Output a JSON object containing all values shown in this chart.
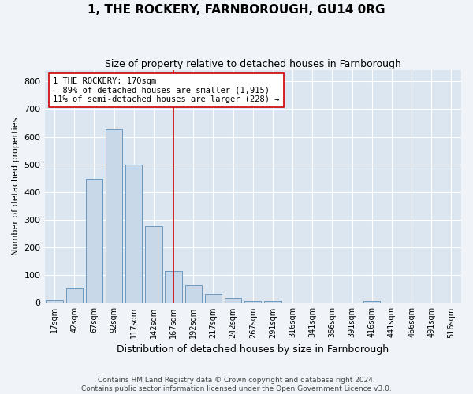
{
  "title": "1, THE ROCKERY, FARNBOROUGH, GU14 0RG",
  "subtitle": "Size of property relative to detached houses in Farnborough",
  "xlabel": "Distribution of detached houses by size in Farnborough",
  "ylabel": "Number of detached properties",
  "bar_color": "#c8d8e8",
  "bar_edge_color": "#5b8db8",
  "background_color": "#dce6f0",
  "fig_background_color": "#f0f4f8",
  "grid_color": "#ffffff",
  "categories": [
    "17sqm",
    "42sqm",
    "67sqm",
    "92sqm",
    "117sqm",
    "142sqm",
    "167sqm",
    "192sqm",
    "217sqm",
    "242sqm",
    "267sqm",
    "291sqm",
    "316sqm",
    "341sqm",
    "366sqm",
    "391sqm",
    "416sqm",
    "441sqm",
    "466sqm",
    "491sqm",
    "516sqm"
  ],
  "values": [
    10,
    52,
    447,
    627,
    498,
    278,
    115,
    63,
    33,
    18,
    8,
    8,
    0,
    0,
    0,
    0,
    8,
    0,
    0,
    0,
    0
  ],
  "vline_pos": 6.5,
  "vline_color": "#cc0000",
  "annotation_text": "1 THE ROCKERY: 170sqm\n← 89% of detached houses are smaller (1,915)\n11% of semi-detached houses are larger (228) →",
  "annotation_box_color": "#ffffff",
  "annotation_box_edge": "#cc0000",
  "ylim": [
    0,
    840
  ],
  "yticks": [
    0,
    100,
    200,
    300,
    400,
    500,
    600,
    700,
    800
  ],
  "footer_line1": "Contains HM Land Registry data © Crown copyright and database right 2024.",
  "footer_line2": "Contains public sector information licensed under the Open Government Licence v3.0."
}
